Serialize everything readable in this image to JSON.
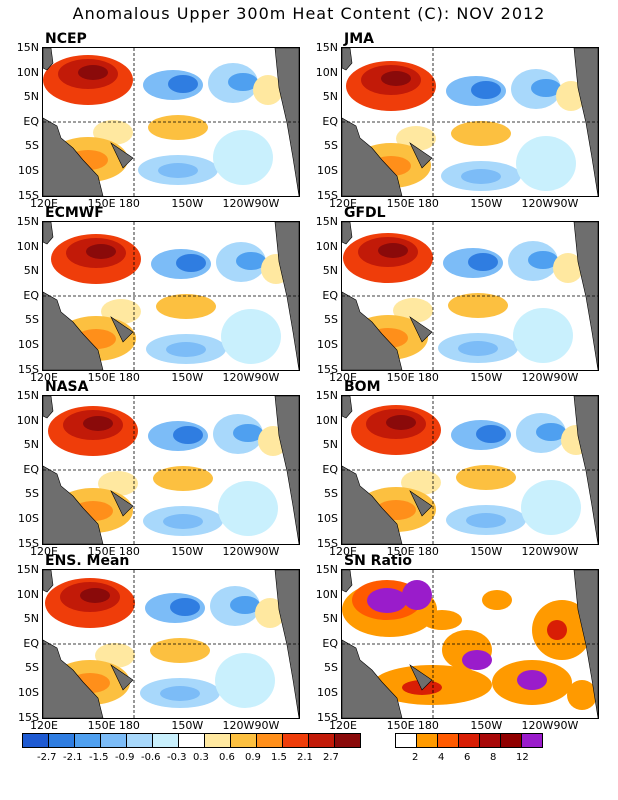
{
  "title": "Anomalous Upper 300m Heat Content (C): NOV 2012",
  "axes": {
    "lat_labels": [
      "15N",
      "10N",
      "5N",
      "EQ",
      "5S",
      "10S",
      "15S"
    ],
    "lon_labels": [
      "120E",
      "150E",
      "180",
      "150W",
      "120W",
      "90W"
    ]
  },
  "panels": [
    {
      "name": "NCEP"
    },
    {
      "name": "JMA"
    },
    {
      "name": "ECMWF"
    },
    {
      "name": "GFDL"
    },
    {
      "name": "NASA"
    },
    {
      "name": "BOM"
    },
    {
      "name": "ENS. Mean"
    },
    {
      "name": "SN Ratio"
    }
  ],
  "colorbar_anomaly": {
    "labels": [
      "-2.7",
      "-2.1",
      "-1.5",
      "-0.9",
      "-0.6",
      "-0.3",
      "0.3",
      "0.6",
      "0.9",
      "1.5",
      "2.1",
      "2.7"
    ],
    "colors": [
      "#1e5ad2",
      "#2f7de1",
      "#4fa0f0",
      "#7cbcf7",
      "#a8d8fb",
      "#c9f0fd",
      "#ffffff",
      "#ffe8a0",
      "#fcc040",
      "#ff8f1a",
      "#ef3d0a",
      "#c21a08",
      "#8a0a0a"
    ]
  },
  "colorbar_snr": {
    "labels": [
      "2",
      "4",
      "6",
      "8",
      "12"
    ],
    "colors": [
      "#ffffff",
      "#ff9a00",
      "#ff5a00",
      "#d81e05",
      "#a80808",
      "#900000",
      "#9a1ccb"
    ]
  },
  "land_color": "#6e6e6e"
}
